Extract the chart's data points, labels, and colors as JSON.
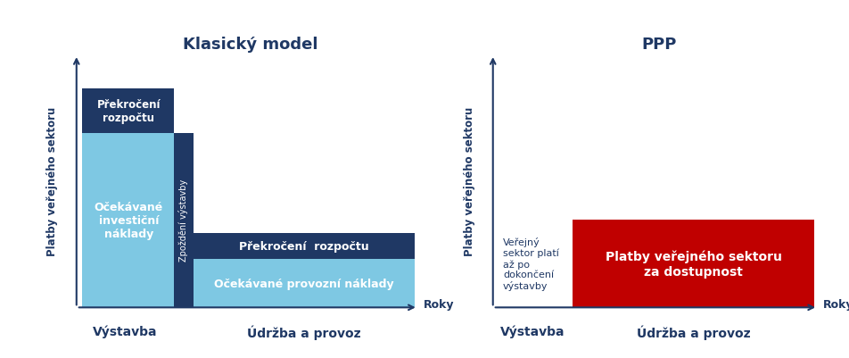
{
  "title_left": "Klasický model",
  "title_right": "PPP",
  "axis_color": "#1F3864",
  "light_blue": "#7EC8E3",
  "dark_blue": "#1F3864",
  "red": "#C00000",
  "white": "#FFFFFF",
  "ylabel": "Platby veřejného sektoru",
  "xlabel": "Roky",
  "label_vystavba": "Výstavba",
  "label_udrzba": "Údržba a provoz",
  "left_labels": {
    "ocekavane_invest": "Očekávané\ninvestiční\nnáklady",
    "prekroceni_rozpoctu_top": "Překročení\nrozpočtu",
    "zpozdeni": "Zpoždění výstavby",
    "prekroceni_rozpoctu_bottom": "Překročení  rozpočtu",
    "ocekavane_provozni": "Očekávané provozní náklady"
  },
  "right_labels": {
    "verejny_sektor": "Veřejný\nsektor platí\naž po\ndokončení\nvýstavby",
    "platby": "Platby veřejného sektoru\nza dostupnost"
  },
  "font_color_dark": "#1F3864",
  "font_size_title": 13,
  "font_size_label": 9,
  "font_size_small": 8
}
